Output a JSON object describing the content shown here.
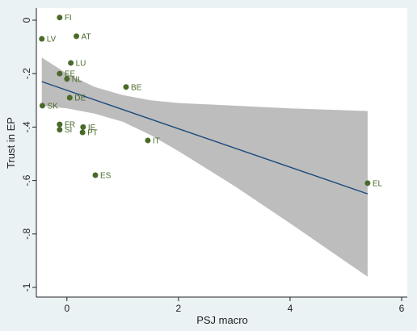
{
  "chart_data": {
    "type": "scatter",
    "title": "",
    "xlabel": "PSJ macro",
    "ylabel": "Trust in EP",
    "xlim": [
      -0.5,
      6
    ],
    "ylim": [
      -1,
      0
    ],
    "x_ticks": [
      "0",
      "2",
      "4",
      "6"
    ],
    "y_ticks": [
      "0",
      "-.2",
      "-.4",
      "-.6",
      "-.8",
      "-1"
    ],
    "grid": false,
    "colors": {
      "plot_background": "#ffffff",
      "page_background": "#eaf2f3",
      "marker": "#4a6a2a",
      "label": "#4a6a2a",
      "fit_line": "#1a4a7a",
      "confidence_band": "#bdbdbd"
    },
    "points": [
      {
        "label": "FI",
        "x": -0.13,
        "y": 0.01
      },
      {
        "label": "LV",
        "x": -0.45,
        "y": -0.07
      },
      {
        "label": "AT",
        "x": 0.17,
        "y": -0.06
      },
      {
        "label": "LU",
        "x": 0.07,
        "y": -0.16
      },
      {
        "label": "EE",
        "x": -0.13,
        "y": -0.2
      },
      {
        "label": "NL",
        "x": 0.0,
        "y": -0.22
      },
      {
        "label": "BE",
        "x": 1.06,
        "y": -0.25
      },
      {
        "label": "DE",
        "x": 0.05,
        "y": -0.29
      },
      {
        "label": "SK",
        "x": -0.44,
        "y": -0.32
      },
      {
        "label": "FR",
        "x": -0.13,
        "y": -0.39
      },
      {
        "label": "SI",
        "x": -0.13,
        "y": -0.41
      },
      {
        "label": "IE",
        "x": 0.29,
        "y": -0.4
      },
      {
        "label": "PT",
        "x": 0.28,
        "y": -0.42
      },
      {
        "label": "IT",
        "x": 1.45,
        "y": -0.45
      },
      {
        "label": "ES",
        "x": 0.51,
        "y": -0.58
      },
      {
        "label": "EL",
        "x": 5.39,
        "y": -0.61
      }
    ],
    "fit_line": {
      "x": [
        -0.45,
        5.39
      ],
      "y": [
        -0.23,
        -0.65
      ]
    },
    "confidence_band": {
      "x": [
        -0.45,
        0.0,
        0.5,
        1.0,
        1.5,
        2.0,
        3.0,
        4.0,
        5.39
      ],
      "upper": [
        -0.14,
        -0.2,
        -0.25,
        -0.28,
        -0.3,
        -0.31,
        -0.32,
        -0.33,
        -0.34
      ],
      "lower": [
        -0.32,
        -0.33,
        -0.35,
        -0.38,
        -0.43,
        -0.49,
        -0.62,
        -0.76,
        -0.96
      ]
    }
  }
}
